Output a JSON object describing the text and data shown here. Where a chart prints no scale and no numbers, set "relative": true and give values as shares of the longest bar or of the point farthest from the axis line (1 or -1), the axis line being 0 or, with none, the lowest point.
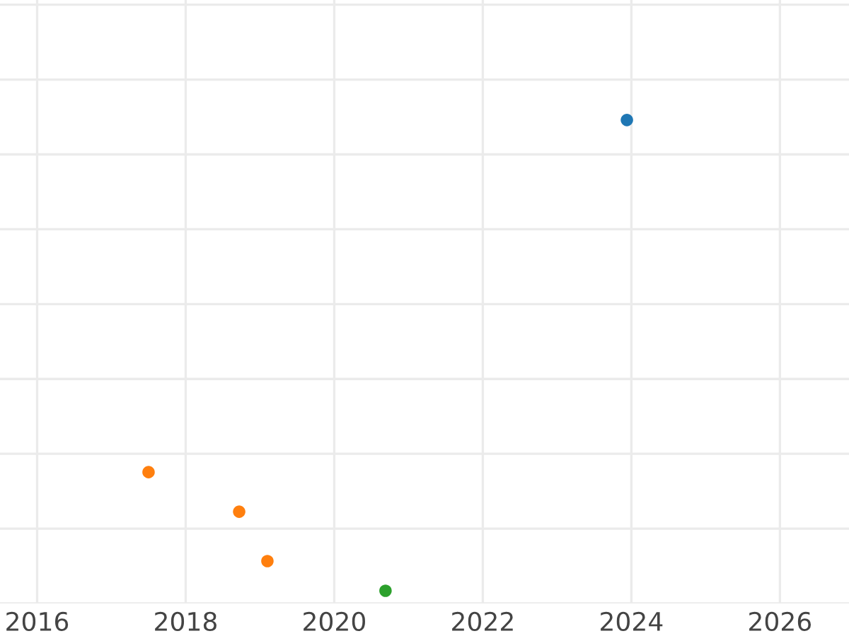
{
  "chart_data": {
    "type": "scatter",
    "relative": true,
    "xlim": [
      2015.5,
      2026.93
    ],
    "xticks": [
      2016,
      2018,
      2020,
      2022,
      2024,
      2026
    ],
    "tick_labels": "x",
    "grid": true,
    "marker": "circle",
    "series": [
      {
        "color": "#1f77b4",
        "x": [
          2023.94
        ],
        "values": [
          1
        ]
      },
      {
        "color": "#ff7f0e",
        "x": [
          2017.5,
          2018.72,
          2019.1
        ],
        "values": [
          0.252,
          0.168,
          0.063
        ]
      },
      {
        "color": "#2ca02c",
        "x": [
          2020.69
        ],
        "values": [
          0
        ]
      }
    ]
  }
}
